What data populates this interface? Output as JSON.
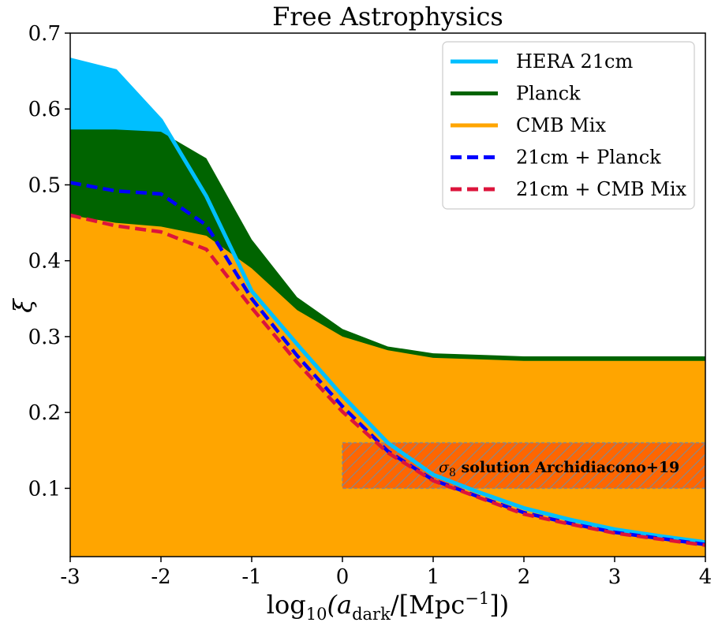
{
  "chart_data": {
    "type": "area",
    "title": "Free Astrophysics",
    "xlabel_parts": {
      "pre": "log",
      "sub1": "10",
      "mid": "(a",
      "sub2": "dark",
      "post1": "/[Mpc",
      "sup": "−1",
      "post2": "])"
    },
    "ylabel": "ξ",
    "xlim": [
      -3,
      4
    ],
    "ylim": [
      0.01,
      0.7
    ],
    "x_ticks": [
      -3,
      -2,
      -1,
      0,
      1,
      2,
      3,
      4
    ],
    "x_tick_labels": [
      "-3",
      "-2",
      "-1",
      "0",
      "1",
      "2",
      "3",
      "4"
    ],
    "y_ticks": [
      0.1,
      0.2,
      0.3,
      0.4,
      0.5,
      0.6,
      0.7
    ],
    "y_tick_labels": [
      "0.1",
      "0.2",
      "0.3",
      "0.4",
      "0.5",
      "0.6",
      "0.7"
    ],
    "grid": false,
    "legend_position": "top-right",
    "series": [
      {
        "name": "HERA 21cm",
        "style": "filled-region",
        "color": "#00bfff",
        "x": [
          -3,
          -2.5,
          -2,
          -1.5,
          -1,
          -0.5,
          0,
          0.5,
          1,
          1.5,
          2,
          2.5,
          3,
          3.5,
          4
        ],
        "values": [
          0.665,
          0.65,
          0.585,
          0.485,
          0.36,
          0.29,
          0.222,
          0.16,
          0.118,
          0.095,
          0.074,
          0.059,
          0.046,
          0.037,
          0.029
        ]
      },
      {
        "name": "Planck",
        "style": "filled-region",
        "color": "#006400",
        "x": [
          -3,
          -2.5,
          -2,
          -1.5,
          -1,
          -0.5,
          0,
          0.5,
          1,
          1.5,
          2,
          2.5,
          3,
          3.5,
          4
        ],
        "values": [
          0.573,
          0.573,
          0.57,
          0.535,
          0.428,
          0.352,
          0.31,
          0.287,
          0.278,
          0.276,
          0.274,
          0.274,
          0.274,
          0.274,
          0.274
        ]
      },
      {
        "name": "CMB Mix",
        "style": "filled-region",
        "color": "#ffa500",
        "x": [
          -3,
          -2.5,
          -2,
          -1.5,
          -1,
          -0.5,
          0,
          0.5,
          1,
          1.5,
          2,
          2.5,
          3,
          3.5,
          4
        ],
        "values": [
          0.46,
          0.45,
          0.445,
          0.433,
          0.39,
          0.335,
          0.3,
          0.282,
          0.272,
          0.27,
          0.268,
          0.268,
          0.268,
          0.268,
          0.268
        ]
      },
      {
        "name": "21cm + Planck",
        "style": "dashed-line",
        "color": "#0000ff",
        "x": [
          -3,
          -2.5,
          -2,
          -1.5,
          -1,
          -0.5,
          0,
          0.5,
          1,
          1.5,
          2,
          2.5,
          3,
          3.5,
          4
        ],
        "values": [
          0.503,
          0.492,
          0.488,
          0.447,
          0.35,
          0.275,
          0.208,
          0.149,
          0.111,
          0.089,
          0.068,
          0.054,
          0.042,
          0.034,
          0.026
        ]
      },
      {
        "name": "21cm + CMB Mix",
        "style": "dashed-line",
        "color": "#dc143c",
        "x": [
          -3,
          -2.5,
          -2,
          -1.5,
          -1,
          -0.5,
          0,
          0.5,
          1,
          1.5,
          2,
          2.5,
          3,
          3.5,
          4
        ],
        "values": [
          0.46,
          0.446,
          0.438,
          0.415,
          0.338,
          0.266,
          0.201,
          0.147,
          0.11,
          0.088,
          0.066,
          0.053,
          0.041,
          0.033,
          0.025
        ]
      }
    ],
    "annotation": {
      "label_symbol": "σ",
      "label_symbol_sub": "8",
      "label_text": " solution Archidiacono+19",
      "x_range": [
        0,
        4
      ],
      "y_range": [
        0.1,
        0.16
      ],
      "fill_color": "#ff6600",
      "hatch_color": "#888888"
    }
  }
}
